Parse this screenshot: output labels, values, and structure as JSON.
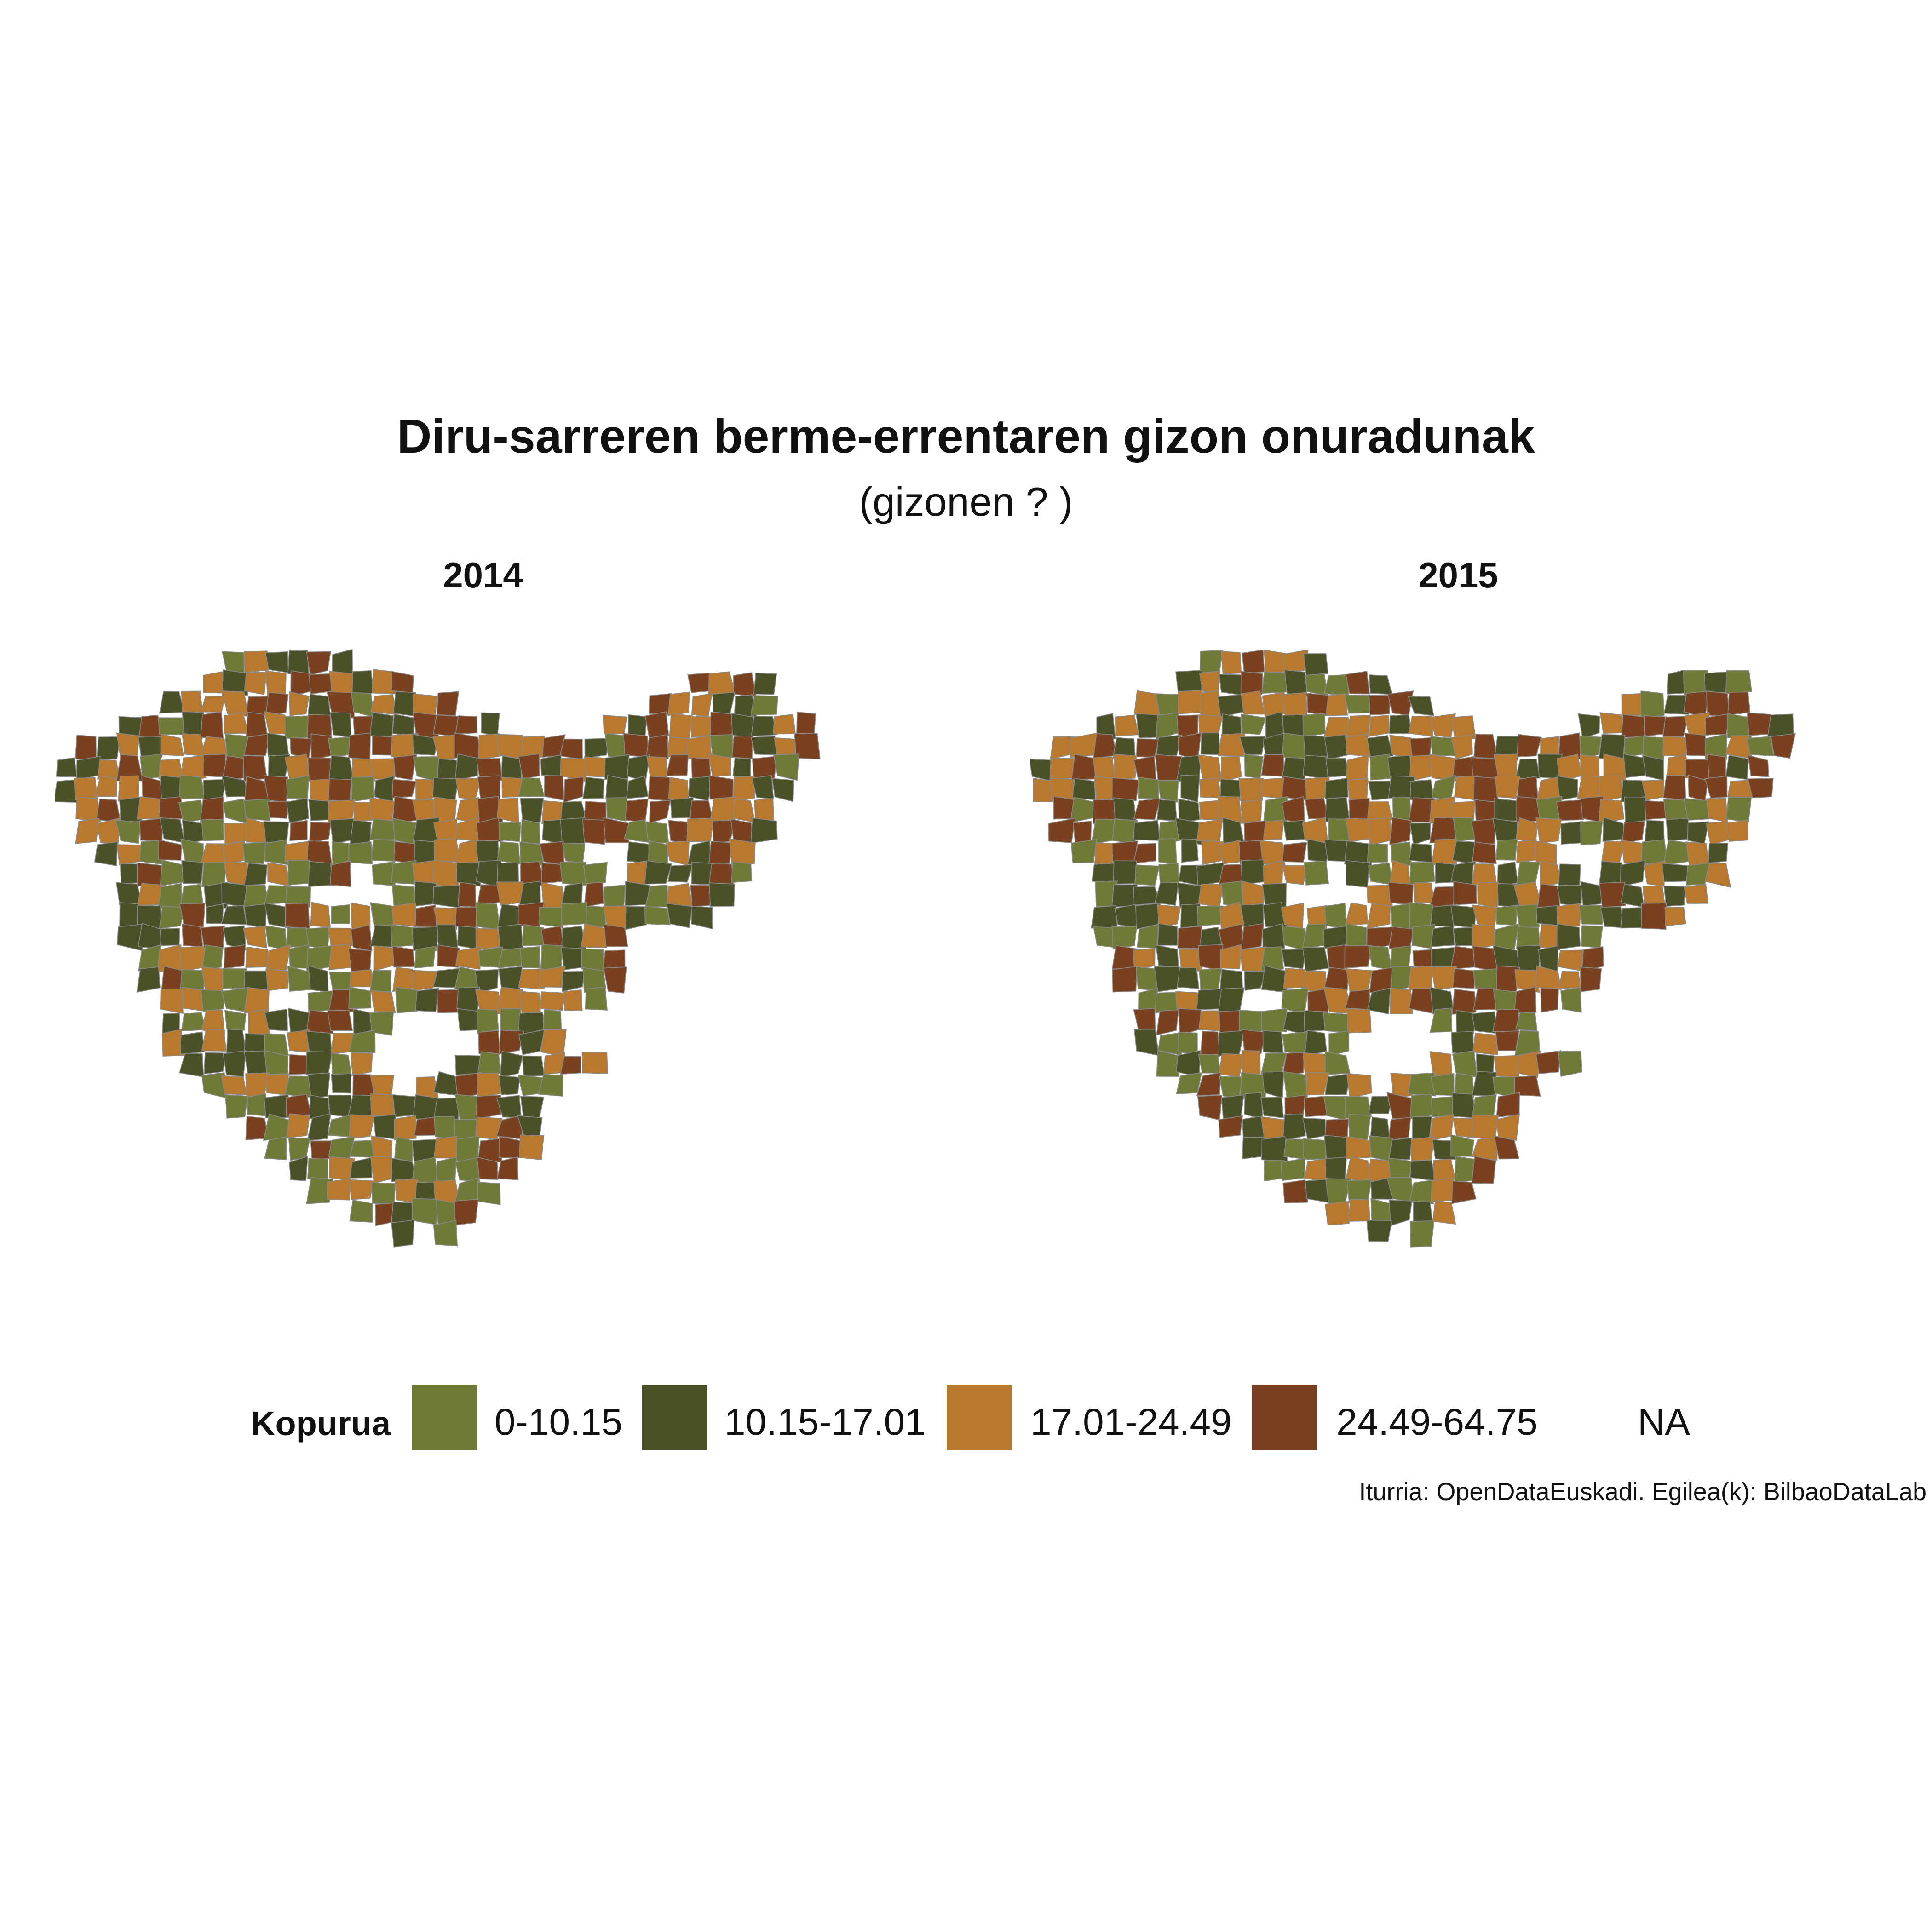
{
  "title": "Diru-sarreren berme-errentaren gizon onuradunak",
  "subtitle": "(gizonen ? )",
  "facets": [
    {
      "label": "2014"
    },
    {
      "label": "2015"
    }
  ],
  "legend": {
    "title": "Kopurua",
    "items": [
      {
        "label": "0-10.15",
        "color": "#6f7a39"
      },
      {
        "label": "10.15-17.01",
        "color": "#4a5028"
      },
      {
        "label": "17.01-24.49",
        "color": "#b8782d"
      },
      {
        "label": "24.49-64.75",
        "color": "#7a4120"
      },
      {
        "label": "NA",
        "color": "#ffffff"
      }
    ]
  },
  "caption": "Iturria: OpenDataEuskadi. Egilea(k): BilbaoDataLab",
  "colors": {
    "border": "#8a8a8a",
    "background": "#ffffff"
  }
}
